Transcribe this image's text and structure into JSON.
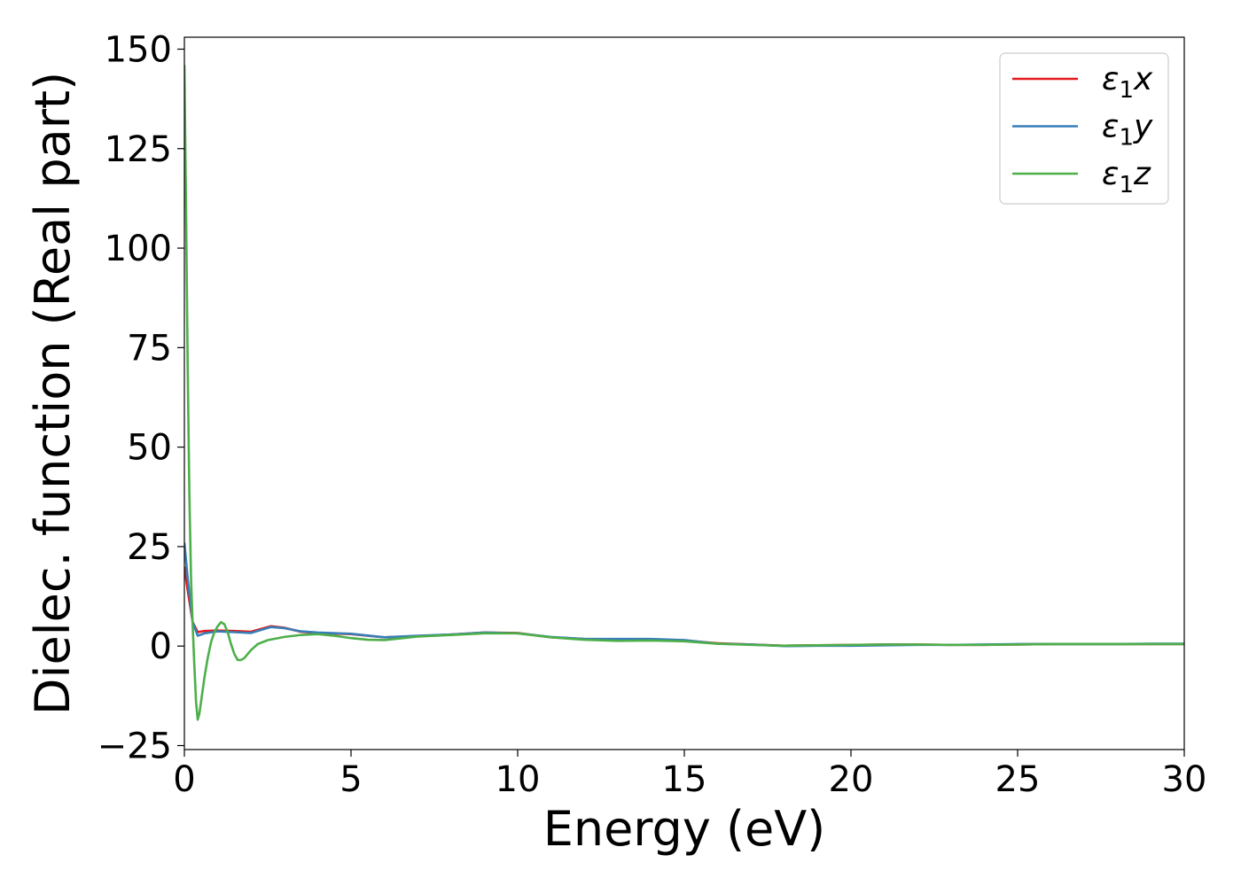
{
  "chart_data": {
    "type": "line",
    "title": "",
    "xlabel": "Energy (eV)",
    "ylabel": "Dielec. function (Real part)",
    "xlim": [
      0,
      30
    ],
    "ylim": [
      -26,
      153
    ],
    "xticks": [
      0,
      5,
      10,
      15,
      20,
      25,
      30
    ],
    "xtick_labels": [
      "0",
      "5",
      "10",
      "15",
      "20",
      "25",
      "30"
    ],
    "yticks": [
      -25,
      0,
      25,
      50,
      75,
      100,
      125,
      150
    ],
    "ytick_labels": [
      "−25",
      "0",
      "25",
      "50",
      "75",
      "100",
      "125",
      "150"
    ],
    "grid": false,
    "legend_position": "top-right",
    "series": [
      {
        "name": "ε₁x",
        "legend_main": "ε",
        "legend_sub": "1",
        "legend_var": "x",
        "color": "#e41a1c",
        "x": [
          0,
          0.1,
          0.25,
          0.4,
          0.6,
          1.0,
          1.5,
          2.0,
          2.6,
          3.0,
          3.5,
          4.0,
          5.0,
          6.0,
          7.0,
          8.0,
          9.0,
          10.0,
          11.0,
          12.0,
          13.0,
          14.0,
          15.0,
          16.0,
          17.0,
          18.0,
          19.0,
          20.0,
          21.0,
          22.0,
          23.0,
          24.0,
          25.0,
          26.0,
          27.0,
          28.0,
          29.0,
          30.0
        ],
        "y": [
          20,
          14,
          6,
          3.5,
          3.8,
          3.9,
          3.8,
          3.6,
          5.0,
          4.6,
          3.6,
          3.3,
          3.0,
          2.2,
          2.5,
          2.9,
          3.4,
          3.3,
          2.2,
          1.8,
          1.7,
          1.6,
          1.4,
          0.7,
          0.4,
          0.1,
          0.2,
          0.3,
          0.4,
          0.4,
          0.3,
          0.3,
          0.4,
          0.5,
          0.5,
          0.5,
          0.5,
          0.5
        ]
      },
      {
        "name": "ε₁y",
        "legend_main": "ε",
        "legend_sub": "1",
        "legend_var": "y",
        "color": "#377eb8",
        "x": [
          0,
          0.1,
          0.25,
          0.4,
          0.6,
          1.0,
          1.5,
          2.0,
          2.6,
          3.0,
          3.5,
          4.0,
          5.0,
          6.0,
          7.0,
          8.0,
          9.0,
          10.0,
          11.0,
          12.0,
          13.0,
          14.0,
          15.0,
          16.0,
          17.0,
          18.0,
          19.0,
          20.0,
          21.0,
          22.0,
          23.0,
          24.0,
          25.0,
          26.0,
          27.0,
          28.0,
          29.0,
          30.0
        ],
        "y": [
          26,
          17,
          6,
          2.6,
          3.2,
          3.7,
          3.5,
          3.3,
          4.8,
          4.5,
          3.7,
          3.4,
          3.1,
          2.2,
          2.6,
          2.9,
          3.4,
          3.2,
          2.3,
          1.8,
          1.8,
          1.8,
          1.5,
          0.6,
          0.4,
          0.0,
          0.1,
          0.1,
          0.2,
          0.3,
          0.3,
          0.4,
          0.5,
          0.5,
          0.5,
          0.5,
          0.6,
          0.6
        ]
      },
      {
        "name": "ε₁z",
        "legend_main": "ε",
        "legend_sub": "1",
        "legend_var": "z",
        "color": "#4daf4a",
        "x": [
          0,
          0.05,
          0.1,
          0.15,
          0.2,
          0.25,
          0.3,
          0.35,
          0.4,
          0.45,
          0.5,
          0.6,
          0.7,
          0.8,
          0.9,
          1.0,
          1.1,
          1.2,
          1.3,
          1.4,
          1.5,
          1.6,
          1.7,
          1.8,
          2.0,
          2.2,
          2.5,
          3.0,
          3.5,
          4.0,
          4.5,
          5.0,
          5.5,
          6.0,
          7.0,
          8.0,
          9.0,
          10.0,
          11.0,
          12.0,
          13.0,
          14.0,
          15.0,
          16.0,
          17.0,
          18.0,
          19.0,
          20.0,
          21.0,
          22.0,
          23.0,
          24.0,
          25.0,
          26.0,
          27.0,
          28.0,
          29.0,
          30.0
        ],
        "y": [
          146,
          110,
          70,
          38,
          17,
          5,
          -5,
          -14,
          -18.5,
          -17,
          -14,
          -8,
          -3,
          1,
          3.5,
          5,
          6,
          5.5,
          3.5,
          0.5,
          -2,
          -3.5,
          -3.5,
          -3,
          -1,
          0.5,
          1.5,
          2.3,
          2.8,
          3.0,
          2.6,
          2.0,
          1.6,
          1.5,
          2.4,
          2.8,
          3.2,
          3.2,
          2.2,
          1.6,
          1.3,
          1.4,
          1.2,
          0.6,
          0.3,
          0.1,
          0.2,
          0.3,
          0.4,
          0.4,
          0.3,
          0.3,
          0.4,
          0.5,
          0.5,
          0.5,
          0.5,
          0.5
        ]
      }
    ]
  }
}
